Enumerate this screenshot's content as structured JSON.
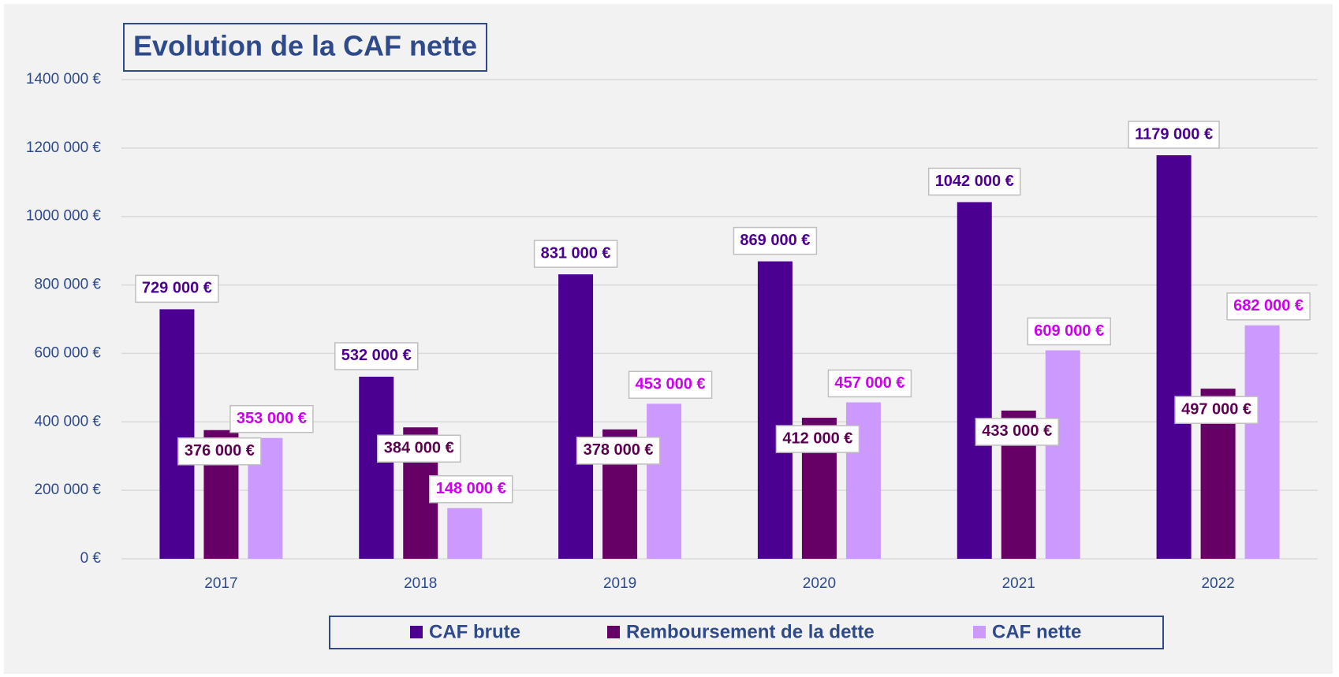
{
  "chart_data": {
    "type": "bar",
    "title": "Evolution de la CAF nette",
    "categories": [
      "2017",
      "2018",
      "2019",
      "2020",
      "2021",
      "2022"
    ],
    "series": [
      {
        "name": "CAF brute",
        "color": "#4b0091",
        "label_color": "#4b0091",
        "values": [
          729000,
          532000,
          831000,
          869000,
          1042000,
          1179000
        ],
        "value_labels": [
          "729 000 €",
          "532 000 €",
          "831 000 €",
          "869 000 €",
          "1042 000 €",
          "1179 000 €"
        ]
      },
      {
        "name": "Remboursement de la dette",
        "color": "#660066",
        "label_color": "#5c0050",
        "values": [
          376000,
          384000,
          378000,
          412000,
          433000,
          497000
        ],
        "value_labels": [
          "376 000 €",
          "384 000 €",
          "378 000 €",
          "412 000 €",
          "433 000 €",
          "497 000 €"
        ]
      },
      {
        "name": "CAF nette",
        "color": "#cc99ff",
        "label_color": "#cc00ee",
        "values": [
          353000,
          148000,
          453000,
          457000,
          609000,
          682000
        ],
        "value_labels": [
          "353 000 €",
          "148 000 €",
          "453 000 €",
          "457 000 €",
          "609 000 €",
          "682 000 €"
        ]
      }
    ],
    "ylim": [
      0,
      1400000
    ],
    "yticks": [
      {
        "value": 0,
        "label": "0 €"
      },
      {
        "value": 200000,
        "label": "200 000 €"
      },
      {
        "value": 400000,
        "label": "400 000 €"
      },
      {
        "value": 600000,
        "label": "600 000 €"
      },
      {
        "value": 800000,
        "label": "800 000 €"
      },
      {
        "value": 1000000,
        "label": "1000 000 €"
      },
      {
        "value": 1200000,
        "label": "1200 000 €"
      },
      {
        "value": 1400000,
        "label": "1400 000 €"
      }
    ],
    "grid": true,
    "legend": "bottom"
  }
}
